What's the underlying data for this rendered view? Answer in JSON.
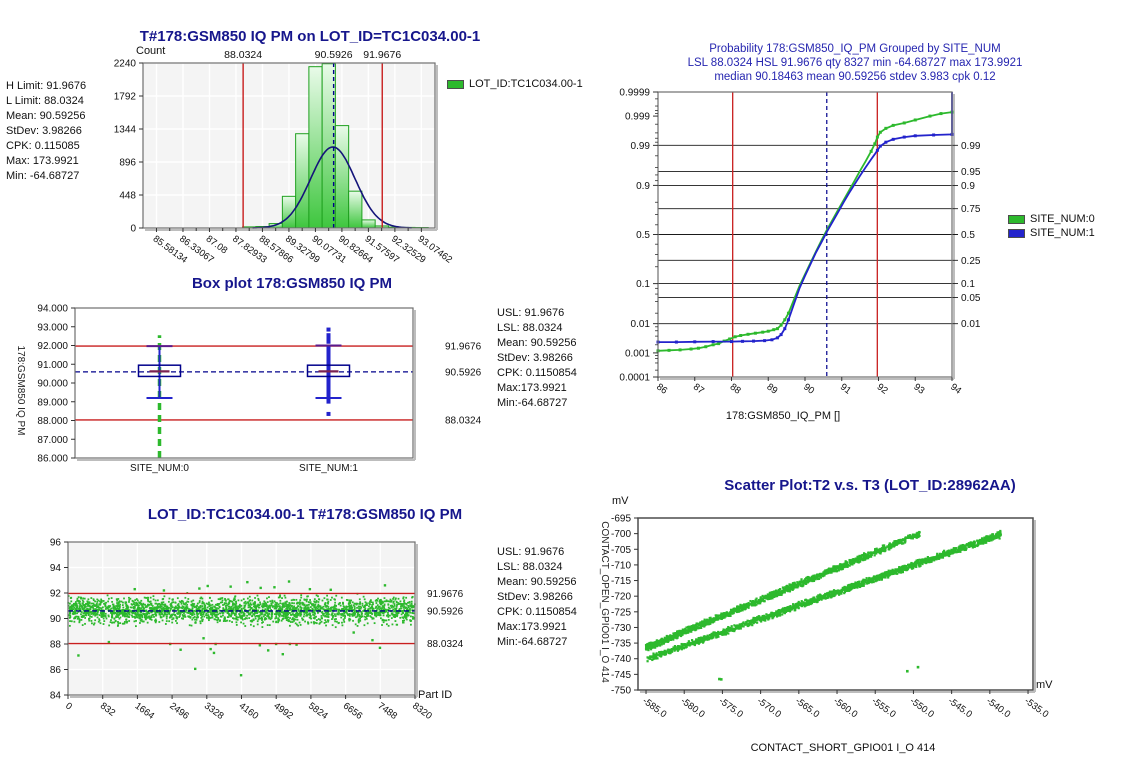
{
  "colors": {
    "green": "#2db92d",
    "green_border": "#1fa11f",
    "blue": "#2323cc",
    "navy": "#16168c",
    "red": "#c81e1e",
    "maroon": "#7b2150",
    "plot_gray_bg": "#f4f4f4",
    "frame": "#808080"
  },
  "chart_data": [
    {
      "type": "bar",
      "title": "T#178:GSM850 IQ PM on LOT_ID=TC1C034.00-1",
      "ylabel": "Count",
      "ylim": [
        0,
        2240
      ],
      "y_ticks": [
        0,
        448,
        896,
        1344,
        1792,
        2240
      ],
      "xlim": [
        85.2,
        93.46
      ],
      "x_tick_labels": [
        "85.58134",
        "86.33067",
        "87.08",
        "87.82933",
        "88.57866",
        "89.32799",
        "90.07731",
        "90.82664",
        "91.57597",
        "92.32529",
        "93.07462"
      ],
      "top_axis_labels": [
        "88.0324",
        "90.5926",
        "91.9676"
      ],
      "bar_width": 0.375,
      "bar_centers": [
        88.205,
        88.58,
        88.955,
        89.33,
        89.705,
        90.08,
        90.455,
        90.83,
        91.205,
        91.58,
        91.955,
        92.33,
        92.705,
        93.08
      ],
      "values": [
        15,
        20,
        60,
        430,
        1280,
        2190,
        2230,
        1390,
        500,
        110,
        28,
        12,
        8,
        6
      ],
      "limits": {
        "low": 88.0324,
        "high": 91.9676,
        "mean": 90.5926
      },
      "normal_curve": {
        "mean": 90.57,
        "sd": 0.63,
        "peak": 1100
      },
      "legend": [
        {
          "label": "LOT_ID:TC1C034.00-1",
          "color": "#2db92d"
        }
      ],
      "stats": [
        "H Limit: 91.9676",
        "L Limit: 88.0324",
        "Mean: 90.59256",
        "StDev: 3.98266",
        "CPK: 0.115085",
        "Max: 173.9921",
        "Min: -64.68727"
      ]
    },
    {
      "type": "box",
      "title": "Box plot 178:GSM850 IQ PM",
      "ylabel": "178:GSM850 IQ PM",
      "ylim": [
        86,
        94
      ],
      "y_tick_labels": [
        "86.000",
        "87.000",
        "88.000",
        "89.000",
        "90.000",
        "91.000",
        "92.000",
        "93.000",
        "94.000"
      ],
      "categories": [
        "SITE_NUM:0",
        "SITE_NUM:1"
      ],
      "limits": {
        "low": 88.0324,
        "high": 91.9676,
        "mean": 90.5926
      },
      "limit_labels": [
        {
          "text": "91.9676",
          "value": 91.9676,
          "color": "#c81e1e"
        },
        {
          "text": "90.5926",
          "value": 90.5926,
          "color": "#2323cc"
        },
        {
          "text": "88.0324",
          "value": 88.0324,
          "color": "#c81e1e"
        }
      ],
      "boxes": [
        {
          "site": "SITE_NUM:0",
          "q1": 90.35,
          "q3": 90.95,
          "median": 90.62,
          "whisker_low": 89.2,
          "whisker_high": 91.97,
          "tail_low": 86.0,
          "tail_high": 92.55,
          "tail_style": "dashed-green",
          "outliers": []
        },
        {
          "site": "SITE_NUM:1",
          "q1": 90.35,
          "q3": 90.95,
          "median": 90.62,
          "whisker_low": 89.2,
          "whisker_high": 92.0,
          "tail_low": 88.9,
          "tail_high": 92.0,
          "tail_style": "solid-blue",
          "outliers": [
            88.35,
            92.2,
            92.35,
            92.55,
            92.85
          ]
        }
      ],
      "stats": [
        "USL: 91.9676",
        "LSL: 88.0324",
        "Mean: 90.59256",
        "StDev: 3.98266",
        "CPK: 0.1150854",
        "Max:173.9921",
        "Min:-64.68727"
      ]
    },
    {
      "type": "scatter",
      "title": "LOT_ID:TC1C034.00-1 T#178:GSM850 IQ PM",
      "xlabel": "Part ID",
      "xlim": [
        0,
        8320
      ],
      "x_ticks": [
        0,
        832,
        1664,
        2496,
        3328,
        4160,
        4992,
        5824,
        6656,
        7488,
        8320
      ],
      "ylim": [
        84,
        96
      ],
      "y_ticks": [
        84,
        86,
        88,
        90,
        92,
        94,
        96
      ],
      "limits": {
        "low": 88.0324,
        "high": 91.9676,
        "mean": 90.5926
      },
      "limit_labels": [
        {
          "text": "91.9676",
          "value": 91.9676,
          "color": "#c81e1e"
        },
        {
          "text": "90.5926",
          "value": 90.5926,
          "color": "#2323cc"
        },
        {
          "text": "88.0324",
          "value": 88.0324,
          "color": "#c81e1e"
        }
      ],
      "band": {
        "center": 90.62,
        "spread": 0.6,
        "clip_low": 89.3,
        "clip_high": 92.05,
        "count": 2600,
        "seed": 42
      },
      "outliers": [
        [
          250,
          87.1
        ],
        [
          980,
          88.15
        ],
        [
          2450,
          88.0
        ],
        [
          2700,
          87.55
        ],
        [
          3050,
          86.05
        ],
        [
          3250,
          88.45
        ],
        [
          3420,
          87.6
        ],
        [
          3500,
          87.3
        ],
        [
          3540,
          88.0
        ],
        [
          4150,
          85.55
        ],
        [
          4600,
          87.9
        ],
        [
          4800,
          87.5
        ],
        [
          4990,
          88.0
        ],
        [
          5150,
          87.2
        ],
        [
          5320,
          88.0
        ],
        [
          5480,
          87.95
        ],
        [
          6850,
          88.9
        ],
        [
          7300,
          88.3
        ],
        [
          7480,
          87.7
        ],
        [
          1600,
          92.3
        ],
        [
          2300,
          92.2
        ],
        [
          3150,
          92.35
        ],
        [
          3350,
          92.55
        ],
        [
          3900,
          92.5
        ],
        [
          4300,
          92.85
        ],
        [
          4620,
          92.4
        ],
        [
          4950,
          92.45
        ],
        [
          5300,
          92.9
        ],
        [
          5800,
          92.3
        ],
        [
          6300,
          92.25
        ],
        [
          7600,
          92.6
        ]
      ],
      "stats": [
        "USL: 91.9676",
        "LSL: 88.0324",
        "Mean: 90.59256",
        "StDev: 3.98266",
        "CPK: 0.1150854",
        "Max:173.9921",
        "Min:-64.68727"
      ]
    },
    {
      "type": "line",
      "title_lines": [
        "Probability 178:GSM850_IQ_PM Grouped by SITE_NUM",
        "LSL 88.0324 HSL 91.9676 qty 8327 min -64.68727 max 173.9921",
        "median 90.18463 mean 90.59256 stdev 3.983 cpk 0.12"
      ],
      "xlabel": "178:GSM850_IQ_PM []",
      "xlim": [
        86,
        94
      ],
      "x_ticks": [
        86,
        87,
        88,
        89,
        90,
        91,
        92,
        93,
        94
      ],
      "p_left_ticks": [
        "0.9999",
        "0.999",
        "0.99",
        "0.9",
        "0.5",
        "0.1",
        "0.01",
        "0.001",
        "0.0001"
      ],
      "p_right_ticks": [
        "0.99",
        "0.95",
        "0.9",
        "0.75",
        "0.5",
        "0.25",
        "0.1",
        "0.05",
        "0.01"
      ],
      "limits": {
        "low": 88.0324,
        "high": 91.9676,
        "mean": 90.5926
      },
      "series": [
        {
          "name": "SITE_NUM:0",
          "color": "#2db92d",
          "points": [
            [
              86.0,
              0.0012
            ],
            [
              86.3,
              0.00125
            ],
            [
              86.6,
              0.0013
            ],
            [
              86.9,
              0.0014
            ],
            [
              87.1,
              0.0015
            ],
            [
              87.3,
              0.0017
            ],
            [
              87.5,
              0.002
            ],
            [
              87.65,
              0.0022
            ],
            [
              87.8,
              0.0027
            ],
            [
              87.95,
              0.0032
            ],
            [
              88.1,
              0.0038
            ],
            [
              88.25,
              0.0042
            ],
            [
              88.45,
              0.0046
            ],
            [
              88.65,
              0.005
            ],
            [
              88.85,
              0.0054
            ],
            [
              89.0,
              0.0058
            ],
            [
              89.15,
              0.0065
            ],
            [
              89.25,
              0.007
            ],
            [
              89.35,
              0.009
            ],
            [
              89.45,
              0.013
            ],
            [
              89.55,
              0.02
            ],
            [
              89.7,
              0.045
            ],
            [
              89.85,
              0.09
            ],
            [
              90.0,
              0.15
            ],
            [
              90.15,
              0.23
            ],
            [
              90.3,
              0.33
            ],
            [
              90.45,
              0.44
            ],
            [
              90.6,
              0.55
            ],
            [
              90.75,
              0.65
            ],
            [
              90.9,
              0.74
            ],
            [
              91.05,
              0.815
            ],
            [
              91.2,
              0.875
            ],
            [
              91.35,
              0.92
            ],
            [
              91.5,
              0.952
            ],
            [
              91.65,
              0.972
            ],
            [
              91.8,
              0.985
            ],
            [
              91.9,
              0.991
            ],
            [
              91.97,
              0.9945
            ],
            [
              92.05,
              0.9962
            ],
            [
              92.2,
              0.9972
            ],
            [
              92.4,
              0.9978
            ],
            [
              92.7,
              0.9982
            ],
            [
              93.0,
              0.9986
            ],
            [
              93.4,
              0.999
            ],
            [
              93.7,
              0.9992
            ],
            [
              94.0,
              0.9993
            ]
          ]
        },
        {
          "name": "SITE_NUM:1",
          "color": "#2323cc",
          "right_edge_to": 0.9999,
          "points": [
            [
              86.0,
              0.0025
            ],
            [
              86.5,
              0.0025
            ],
            [
              87.0,
              0.00255
            ],
            [
              87.5,
              0.0026
            ],
            [
              88.0,
              0.0026
            ],
            [
              88.3,
              0.00265
            ],
            [
              88.6,
              0.0027
            ],
            [
              88.9,
              0.0028
            ],
            [
              89.1,
              0.003
            ],
            [
              89.25,
              0.0035
            ],
            [
              89.35,
              0.0045
            ],
            [
              89.45,
              0.007
            ],
            [
              89.55,
              0.013
            ],
            [
              89.7,
              0.035
            ],
            [
              89.85,
              0.08
            ],
            [
              90.0,
              0.14
            ],
            [
              90.15,
              0.22
            ],
            [
              90.3,
              0.32
            ],
            [
              90.45,
              0.42
            ],
            [
              90.6,
              0.53
            ],
            [
              90.75,
              0.63
            ],
            [
              90.9,
              0.72
            ],
            [
              91.05,
              0.8
            ],
            [
              91.2,
              0.86
            ],
            [
              91.35,
              0.905
            ],
            [
              91.5,
              0.938
            ],
            [
              91.65,
              0.96
            ],
            [
              91.8,
              0.975
            ],
            [
              91.9,
              0.982
            ],
            [
              91.97,
              0.986
            ],
            [
              92.05,
              0.9895
            ],
            [
              92.2,
              0.992
            ],
            [
              92.4,
              0.9935
            ],
            [
              92.7,
              0.9945
            ],
            [
              93.0,
              0.995
            ],
            [
              93.5,
              0.9953
            ],
            [
              94.0,
              0.9955
            ]
          ]
        }
      ]
    },
    {
      "type": "scatter",
      "title": "Scatter Plot:T2 v.s. T3 (LOT_ID:28962AA)",
      "xlabel": "CONTACT_SHORT_GPIO01 I_O 414",
      "ylabel": "CONTACT_OPEN_GPIO01 I_O 414",
      "x_unit": "mV",
      "y_unit": "mV",
      "xlim": [
        -586.05,
        -534.35
      ],
      "x_tick_labels": [
        "-585.0",
        "-580.0",
        "-575.0",
        "-570.0",
        "-565.0",
        "-560.0",
        "-555.0",
        "-550.0",
        "-545.0",
        "-540.0",
        "-535.0"
      ],
      "ylim": [
        -750,
        -695
      ],
      "y_ticks": [
        -695,
        -700,
        -705,
        -710,
        -715,
        -720,
        -725,
        -730,
        -735,
        -740,
        -745,
        -750
      ],
      "color": "#2db92d",
      "bands": [
        {
          "x_start": -585,
          "x_end": -549,
          "y_start": -736.5,
          "y_end": -699.8,
          "noise": 1.2,
          "count": 1500,
          "seed": 7,
          "skew": 1.25
        },
        {
          "x_start": -585,
          "x_end": -538.5,
          "y_start": -740.2,
          "y_end": -700.2,
          "noise": 1.2,
          "count": 1700,
          "seed": 99,
          "skew": 0.85
        }
      ],
      "isolated_points": [
        [
          -575.4,
          -746.5
        ],
        [
          -575.15,
          -746.6
        ],
        [
          -550.8,
          -744.0
        ],
        [
          -549.4,
          -742.7
        ]
      ]
    }
  ]
}
